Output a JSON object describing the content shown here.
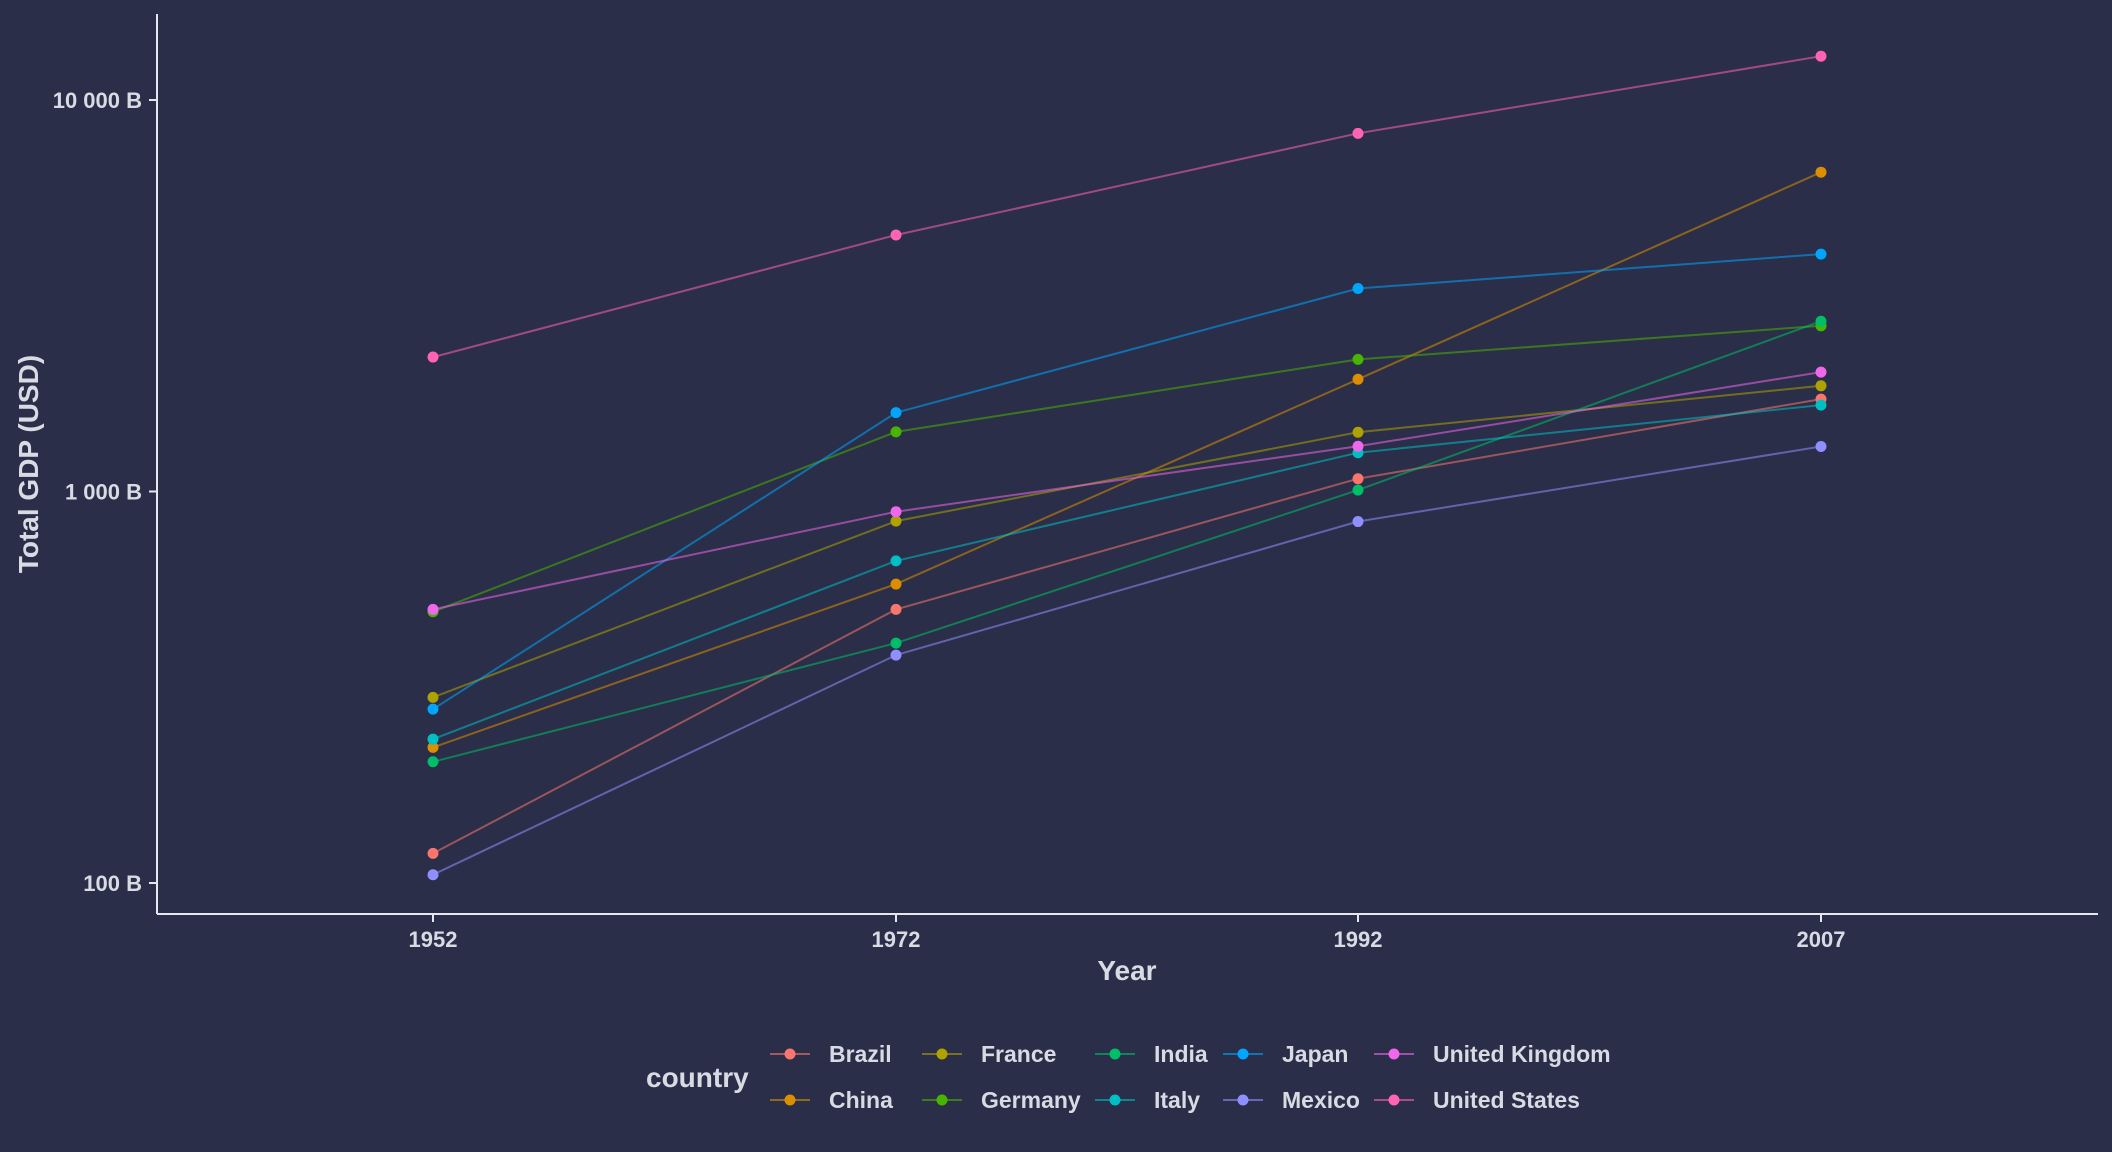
{
  "chart_data": {
    "type": "line",
    "title": "",
    "xlabel": "Year",
    "ylabel": "Total GDP (USD)",
    "x": [
      1952,
      1972,
      1992,
      2007
    ],
    "x_ticks": [
      "1952",
      "1972",
      "1992",
      "2007"
    ],
    "y_scale": "log10",
    "y_unit": "B",
    "ylim": [
      85,
      14000
    ],
    "y_ticks": [
      {
        "value": 100,
        "label": "100 B"
      },
      {
        "value": 1000,
        "label": "1 000 B"
      },
      {
        "value": 10000,
        "label": "10 000 B"
      }
    ],
    "grid": false,
    "legend_title": "country",
    "legend_position": "bottom",
    "series": [
      {
        "name": "Brazil",
        "color": "#f8766d",
        "values": [
          119,
          500,
          1078,
          1722
        ]
      },
      {
        "name": "China",
        "color": "#db8e00",
        "values": [
          222,
          580,
          1935,
          6540
        ]
      },
      {
        "name": "France",
        "color": "#aea200",
        "values": [
          298,
          840,
          1417,
          1862
        ]
      },
      {
        "name": "Germany",
        "color": "#49b400",
        "values": [
          493,
          1420,
          2175,
          2650
        ]
      },
      {
        "name": "India",
        "color": "#00be67",
        "values": [
          204,
          410,
          1008,
          2722
        ]
      },
      {
        "name": "Italy",
        "color": "#00bfc4",
        "values": [
          233,
          665,
          1256,
          1662
        ]
      },
      {
        "name": "Japan",
        "color": "#00a5ff",
        "values": [
          278,
          1590,
          3300,
          4040
        ]
      },
      {
        "name": "Mexico",
        "color": "#8f8fff",
        "values": [
          105,
          382,
          838,
          1303
        ]
      },
      {
        "name": "United Kingdom",
        "color": "#ef67eb",
        "values": [
          500,
          888,
          1305,
          2018
        ]
      },
      {
        "name": "United States",
        "color": "#ff63b6",
        "values": [
          2205,
          4520,
          8220,
          12935
        ]
      }
    ]
  }
}
